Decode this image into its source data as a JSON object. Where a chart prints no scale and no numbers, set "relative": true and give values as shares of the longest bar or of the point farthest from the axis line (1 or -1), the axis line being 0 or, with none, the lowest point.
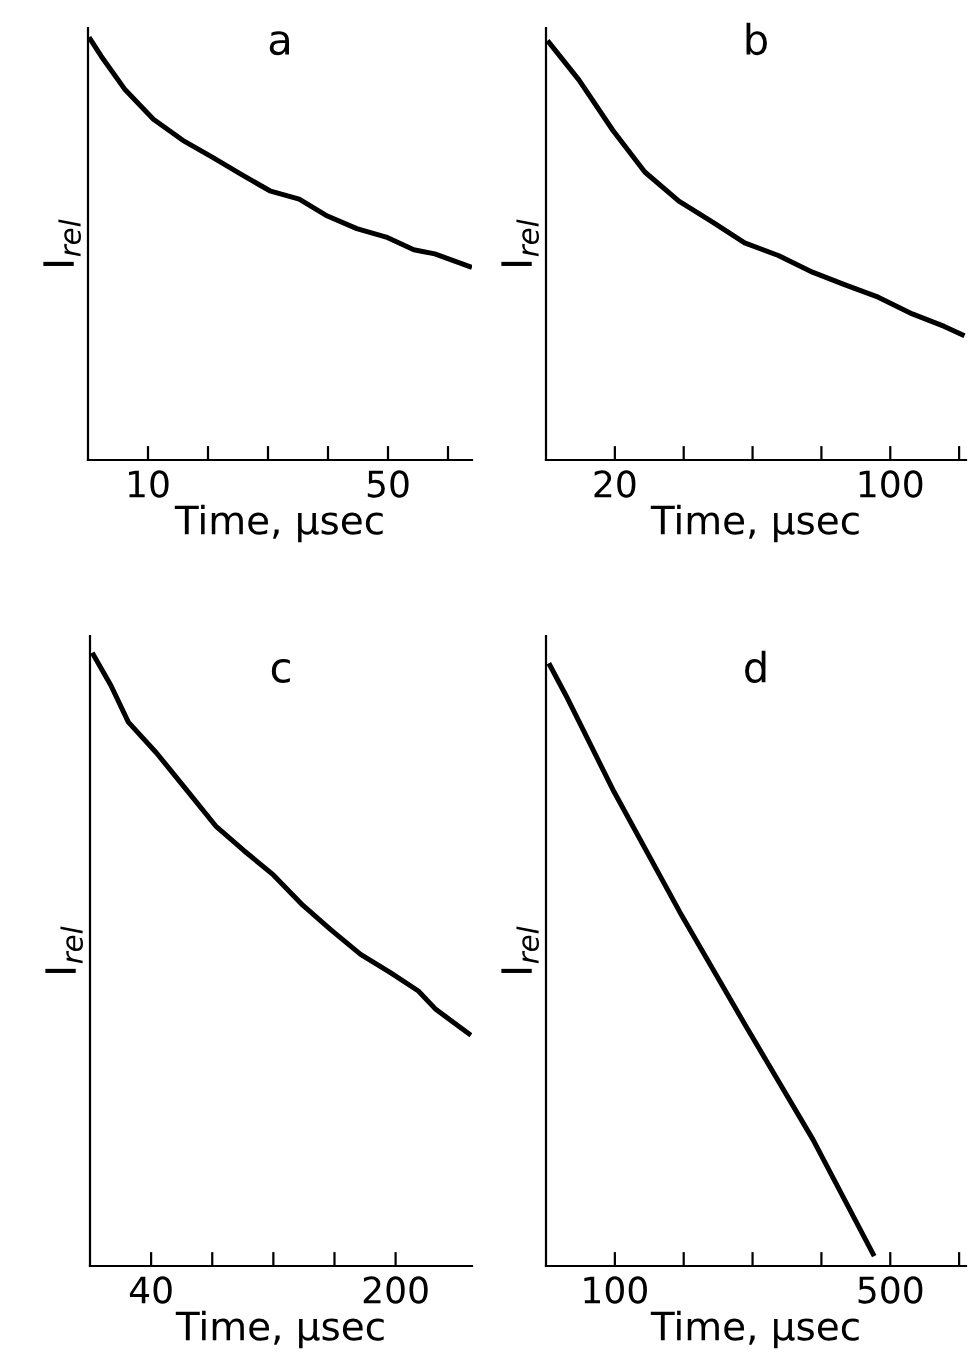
{
  "chart_data": [
    {
      "type": "line",
      "title": "a",
      "xlabel": "Time, µsec",
      "ylabel": "I$_{rel}$",
      "relative": true,
      "tick_labels": "x",
      "grid": false,
      "legend": false,
      "marker": "none",
      "line_style": "solid",
      "xlim": [
        0,
        64
      ],
      "xticks": [
        {
          "value": 10,
          "label": "10"
        },
        {
          "value": 20,
          "label": null
        },
        {
          "value": 30,
          "label": null
        },
        {
          "value": 40,
          "label": null
        },
        {
          "value": 50,
          "label": "50"
        },
        {
          "value": 60,
          "label": null
        }
      ],
      "series": [
        {
          "color": "#000000",
          "x": [
            0.4,
            2.2,
            6.2,
            10.9,
            15.8,
            20.7,
            25.4,
            30.3,
            35.2,
            39.9,
            44.8,
            49.7,
            54.3,
            57.8,
            63.6
          ],
          "values": [
            1.0,
            0.96,
            0.88,
            0.81,
            0.76,
            0.72,
            0.68,
            0.64,
            0.62,
            0.58,
            0.55,
            0.53,
            0.5,
            0.49,
            0.46
          ]
        }
      ]
    },
    {
      "type": "line",
      "title": "b",
      "xlabel": "Time, µsec",
      "ylabel": "I$_{rel}$",
      "relative": true,
      "tick_labels": "x",
      "grid": false,
      "legend": false,
      "marker": "none",
      "line_style": "solid",
      "xlim": [
        0,
        122
      ],
      "xticks": [
        {
          "value": 20,
          "label": "20"
        },
        {
          "value": 40,
          "label": null
        },
        {
          "value": 60,
          "label": null
        },
        {
          "value": 80,
          "label": null
        },
        {
          "value": 100,
          "label": "100"
        },
        {
          "value": 120,
          "label": null
        }
      ],
      "series": [
        {
          "color": "#000000",
          "x": [
            0.9,
            9.6,
            19.4,
            28.7,
            38.6,
            48.4,
            57.7,
            67.5,
            77.4,
            86.7,
            96.5,
            106.4,
            115.7,
            120.9
          ],
          "values": [
            1.0,
            0.91,
            0.79,
            0.69,
            0.62,
            0.57,
            0.52,
            0.49,
            0.45,
            0.42,
            0.39,
            0.35,
            0.32,
            0.3
          ]
        }
      ]
    },
    {
      "type": "line",
      "title": "c",
      "xlabel": "Time, µsec",
      "ylabel": "I$_{rel}$",
      "relative": true,
      "tick_labels": "x",
      "grid": false,
      "legend": false,
      "marker": "none",
      "line_style": "solid",
      "xlim": [
        0,
        250
      ],
      "xticks": [
        {
          "value": 40,
          "label": "40"
        },
        {
          "value": 80,
          "label": null
        },
        {
          "value": 120,
          "label": null
        },
        {
          "value": 160,
          "label": null
        },
        {
          "value": 200,
          "label": "200"
        }
      ],
      "series": [
        {
          "color": "#000000",
          "x": [
            2.3,
            13.7,
            25.1,
            43.4,
            62.9,
            82.3,
            100.6,
            120,
            139.4,
            157.7,
            177.1,
            196.6,
            214.9,
            226.3,
            248
          ],
          "values": [
            1.0,
            0.95,
            0.89,
            0.84,
            0.78,
            0.72,
            0.68,
            0.64,
            0.59,
            0.55,
            0.51,
            0.48,
            0.45,
            0.42,
            0.38
          ]
        }
      ]
    },
    {
      "type": "line",
      "title": "d",
      "xlabel": "Time, µsec",
      "ylabel": "I$_{rel}$",
      "relative": true,
      "tick_labels": "x",
      "grid": false,
      "legend": false,
      "marker": "none",
      "line_style": "solid",
      "xlim": [
        0,
        610
      ],
      "xticks": [
        {
          "value": 100,
          "label": "100"
        },
        {
          "value": 200,
          "label": null
        },
        {
          "value": 300,
          "label": null
        },
        {
          "value": 400,
          "label": null
        },
        {
          "value": 500,
          "label": "500"
        },
        {
          "value": 600,
          "label": null
        }
      ],
      "series": [
        {
          "color": "#000000",
          "x": [
            5.8,
            29,
            98.6,
            194,
            290,
            388,
            475
          ],
          "values": [
            1.0,
            0.95,
            0.79,
            0.59,
            0.4,
            0.21,
            0.02
          ]
        }
      ]
    }
  ]
}
